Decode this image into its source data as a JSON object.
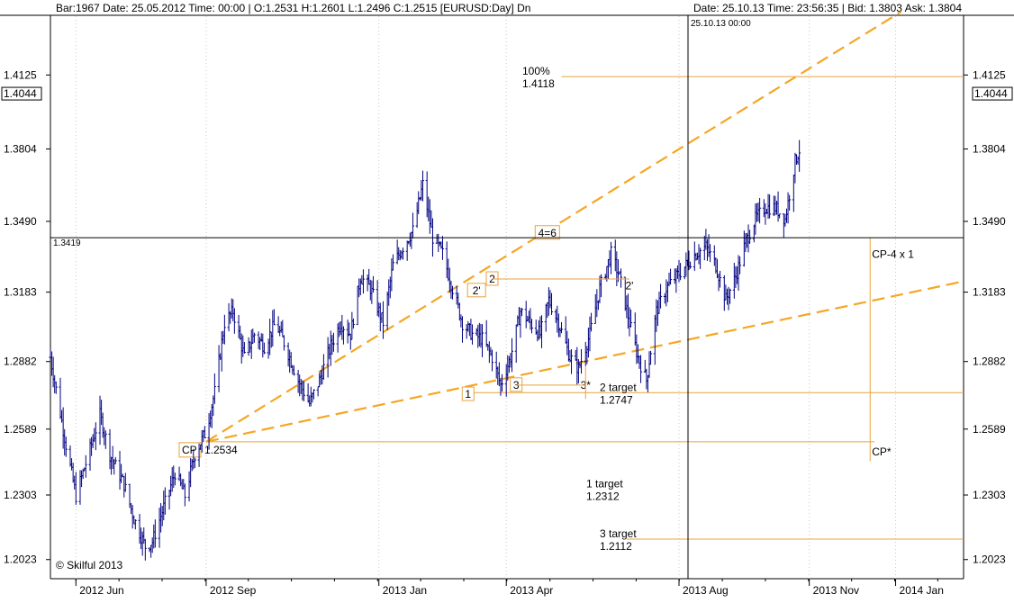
{
  "header": {
    "left": "Bar:1967  Date: 25.05.2012  Time: 00:00  |  O:1.2531  H:1.2601  L:1.2496  C:1.2515   [EURUSD:Day]  Dn",
    "right": "Date: 25.10.13  Time: 23:56:35  |  Bid: 1.3803  Ask: 1.3804"
  },
  "watermark": "© Skilful 2013",
  "crosshair": {
    "date_label": "25.10.13 00:00",
    "price_label": "1.3419",
    "price": 1.3419
  },
  "colors": {
    "price_bars": "#000080",
    "fib": "#e8a33c",
    "trend": "#f5a623",
    "axis": "#000000"
  },
  "chart_data": {
    "type": "bar",
    "instrument": "EURUSD",
    "timeframe": "Day",
    "x_ticks": [
      {
        "label": "2012 Jun",
        "date": "2012-06-01"
      },
      {
        "label": "2012 Sep",
        "date": "2012-09-01"
      },
      {
        "label": "2013 Jan",
        "date": "2013-01-01"
      },
      {
        "label": "2013 Apr",
        "date": "2013-04-01"
      },
      {
        "label": "2013 Aug",
        "date": "2013-08-01"
      },
      {
        "label": "2013 Nov",
        "date": "2013-11-01"
      },
      {
        "label": "2014 Jan",
        "date": "2014-01-01"
      }
    ],
    "y_ticks": [
      "1.2023",
      "1.2303",
      "1.2589",
      "1.2882",
      "1.3183",
      "1.3490",
      "1.3804",
      "1.4125"
    ],
    "current_price_label": "1.4044",
    "current_price": 1.4044,
    "ylim": [
      1.194,
      1.438
    ],
    "xlim": [
      "2012-05-14",
      "2014-02-18"
    ],
    "price_path": [
      [
        "2012-05-14",
        1.29
      ],
      [
        "2012-05-25",
        1.252
      ],
      [
        "2012-06-01",
        1.23
      ],
      [
        "2012-06-10",
        1.248
      ],
      [
        "2012-06-18",
        1.265
      ],
      [
        "2012-06-25",
        1.248
      ],
      [
        "2012-07-05",
        1.235
      ],
      [
        "2012-07-12",
        1.22
      ],
      [
        "2012-07-20",
        1.208
      ],
      [
        "2012-07-25",
        1.21
      ],
      [
        "2012-08-02",
        1.225
      ],
      [
        "2012-08-10",
        1.24
      ],
      [
        "2012-08-17",
        1.23
      ],
      [
        "2012-08-24",
        1.248
      ],
      [
        "2012-09-01",
        1.258
      ],
      [
        "2012-09-07",
        1.275
      ],
      [
        "2012-09-14",
        1.305
      ],
      [
        "2012-09-20",
        1.31
      ],
      [
        "2012-09-28",
        1.29
      ],
      [
        "2012-10-05",
        1.3
      ],
      [
        "2012-10-12",
        1.295
      ],
      [
        "2012-10-20",
        1.305
      ],
      [
        "2012-10-27",
        1.295
      ],
      [
        "2012-11-05",
        1.28
      ],
      [
        "2012-11-13",
        1.27
      ],
      [
        "2012-11-20",
        1.28
      ],
      [
        "2012-11-28",
        1.295
      ],
      [
        "2012-12-05",
        1.305
      ],
      [
        "2012-12-12",
        1.3
      ],
      [
        "2012-12-19",
        1.325
      ],
      [
        "2012-12-26",
        1.32
      ],
      [
        "2013-01-04",
        1.305
      ],
      [
        "2013-01-11",
        1.33
      ],
      [
        "2013-01-18",
        1.338
      ],
      [
        "2013-01-25",
        1.345
      ],
      [
        "2013-02-01",
        1.365
      ],
      [
        "2013-02-08",
        1.342
      ],
      [
        "2013-02-15",
        1.335
      ],
      [
        "2013-02-22",
        1.32
      ],
      [
        "2013-03-01",
        1.305
      ],
      [
        "2013-03-08",
        1.3
      ],
      [
        "2013-03-15",
        1.298
      ],
      [
        "2013-03-22",
        1.29
      ],
      [
        "2013-03-28",
        1.278
      ],
      [
        "2013-04-04",
        1.29
      ],
      [
        "2013-04-11",
        1.31
      ],
      [
        "2013-04-18",
        1.305
      ],
      [
        "2013-04-25",
        1.3
      ],
      [
        "2013-05-01",
        1.315
      ],
      [
        "2013-05-08",
        1.305
      ],
      [
        "2013-05-16",
        1.29
      ],
      [
        "2013-05-22",
        1.285
      ],
      [
        "2013-05-30",
        1.3
      ],
      [
        "2013-06-06",
        1.32
      ],
      [
        "2013-06-14",
        1.335
      ],
      [
        "2013-06-20",
        1.325
      ],
      [
        "2013-06-27",
        1.305
      ],
      [
        "2013-07-03",
        1.29
      ],
      [
        "2013-07-09",
        1.28
      ],
      [
        "2013-07-16",
        1.31
      ],
      [
        "2013-07-23",
        1.32
      ],
      [
        "2013-07-30",
        1.325
      ],
      [
        "2013-08-06",
        1.33
      ],
      [
        "2013-08-13",
        1.335
      ],
      [
        "2013-08-20",
        1.338
      ],
      [
        "2013-08-27",
        1.33
      ],
      [
        "2013-09-03",
        1.315
      ],
      [
        "2013-09-10",
        1.325
      ],
      [
        "2013-09-17",
        1.34
      ],
      [
        "2013-09-24",
        1.35
      ],
      [
        "2013-10-01",
        1.355
      ],
      [
        "2013-10-08",
        1.355
      ],
      [
        "2013-10-15",
        1.35
      ],
      [
        "2013-10-22",
        1.375
      ],
      [
        "2013-10-25",
        1.38
      ]
    ],
    "levels": [
      {
        "label": "100%",
        "value": "1.4118",
        "price": 1.4118
      },
      {
        "label": "CP",
        "value": "1.2534",
        "price": 1.2534
      },
      {
        "label": "2 target",
        "value": "1.2747",
        "price": 1.2747
      },
      {
        "label": "1 target",
        "value": "1.2312",
        "price": 1.2312
      },
      {
        "label": "3 target",
        "value": "1.2112",
        "price": 1.2112
      }
    ],
    "trendlines": [
      {
        "from": [
          "2012-09-01",
          1.2534
        ],
        "to": [
          "2014-01-05",
          1.44
        ]
      },
      {
        "from": [
          "2012-09-01",
          1.2534
        ],
        "to": [
          "2014-02-18",
          1.323
        ]
      }
    ],
    "markers": [
      {
        "label": "1",
        "date": "2013-03-05",
        "price": 1.274
      },
      {
        "label": "2'",
        "date": "2013-03-11",
        "price": 1.319
      },
      {
        "label": "2",
        "date": "2013-03-22",
        "price": 1.324
      },
      {
        "label": "3",
        "date": "2013-04-08",
        "price": 1.278
      },
      {
        "label": "4=6",
        "date": "2013-04-30",
        "price": 1.344
      },
      {
        "label": "3*",
        "date": "2013-05-27",
        "price": 1.278
      },
      {
        "label": "2'",
        "date": "2013-06-27",
        "price": 1.321
      }
    ],
    "projection_labels": [
      {
        "label": "CP-4 x 1",
        "date": "2013-12-14",
        "price": 1.337
      },
      {
        "label": "CP*",
        "date": "2013-12-14",
        "price": 1.253
      }
    ]
  }
}
